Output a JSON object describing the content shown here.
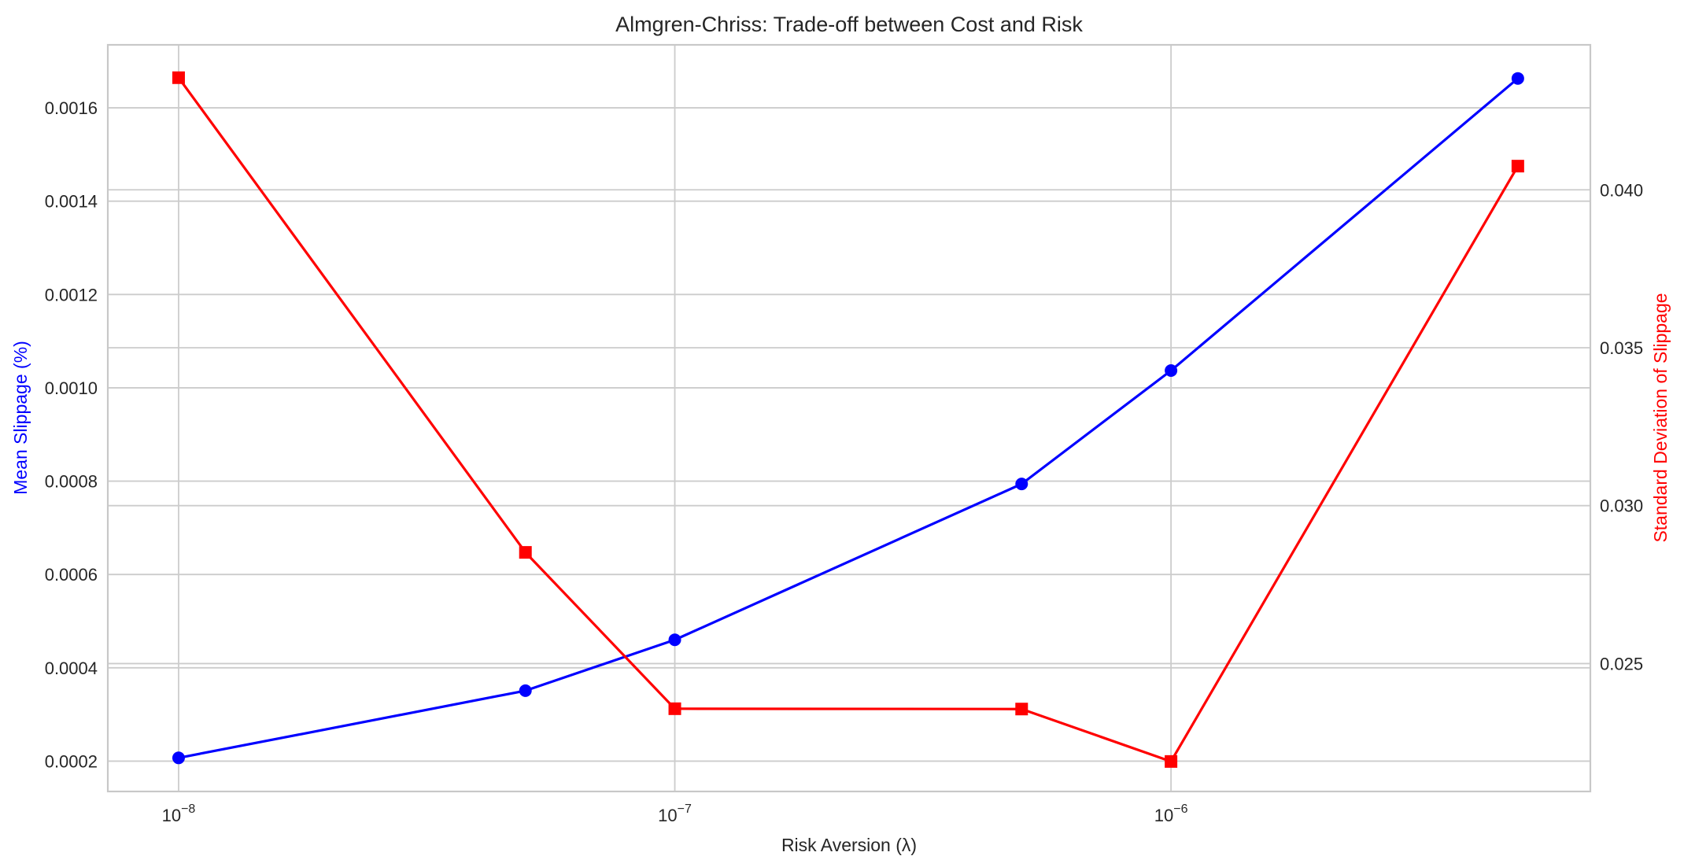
{
  "chart_data": {
    "type": "line",
    "title": "Almgren-Chriss: Trade-off between Cost and Risk",
    "xlabel": "Risk Aversion (λ)",
    "x_scale": "log",
    "x": [
      1e-08,
      5e-08,
      1e-07,
      5e-07,
      1e-06,
      5e-06
    ],
    "x_ticks": [
      {
        "value": 1e-08,
        "base": "10",
        "exp": "−8"
      },
      {
        "value": 1e-07,
        "base": "10",
        "exp": "−7"
      },
      {
        "value": 1e-06,
        "base": "10",
        "exp": "−6"
      }
    ],
    "xlim": [
      7.2e-09,
      7e-06
    ],
    "y_left": {
      "label": "Mean Slippage (%)",
      "color": "#0000ff",
      "ylim": [
        0.000135,
        0.001735
      ],
      "ticks": [
        0.0002,
        0.0004,
        0.0006,
        0.0008,
        0.001,
        0.0012,
        0.0014,
        0.0016
      ],
      "tick_labels": [
        "0.0002",
        "0.0004",
        "0.0006",
        "0.0008",
        "0.0010",
        "0.0012",
        "0.0014",
        "0.0016"
      ]
    },
    "y_right": {
      "label": "Standard Deviation of Slippage",
      "color": "#ff0000",
      "ylim": [
        0.02095,
        0.04459
      ],
      "ticks": [
        0.025,
        0.03,
        0.035,
        0.04
      ],
      "tick_labels": [
        "0.025",
        "0.030",
        "0.035",
        "0.040"
      ]
    },
    "series": [
      {
        "axis": "left",
        "color": "#0000ff",
        "marker": "circle",
        "values": [
          0.000207,
          0.000351,
          0.00046,
          0.000794,
          0.001037,
          0.001663
        ]
      },
      {
        "axis": "right",
        "color": "#ff0000",
        "marker": "square",
        "values": [
          0.04355,
          0.02852,
          0.02357,
          0.02356,
          0.0219,
          0.04075
        ]
      }
    ],
    "grid": true
  }
}
